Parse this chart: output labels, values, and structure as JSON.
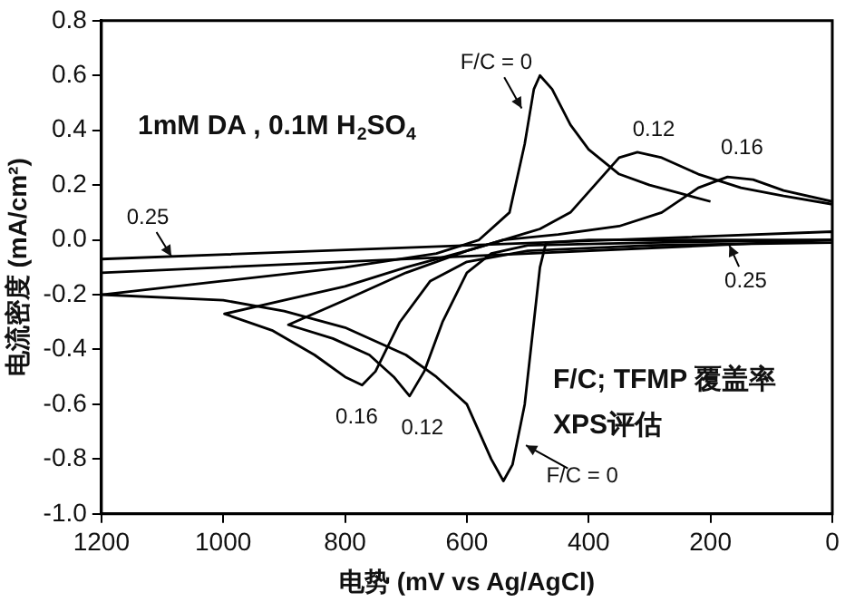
{
  "chart_data": {
    "type": "line",
    "xlabel": "电势 (mV vs Ag/AgCl)",
    "ylabel": "电流密度 (mA/cm²)",
    "xlim": [
      1200,
      0
    ],
    "xticks": [
      1200,
      1000,
      800,
      600,
      400,
      200,
      0
    ],
    "ylim": [
      -1,
      0.8
    ],
    "yticks": [
      {
        "value": -1,
        "label": "-1.0"
      },
      -0.8,
      -0.6,
      -0.4,
      -0.2,
      {
        "value": 0,
        "label": "0.0"
      },
      0.2,
      0.4,
      0.6,
      0.8
    ],
    "grid": false,
    "legend": false,
    "marker": "none",
    "line_style": "solid",
    "series": [
      {
        "color": "#000000",
        "x": [
          0,
          200,
          400,
          470,
          480,
          490,
          505,
          525,
          540,
          560,
          600,
          650,
          700,
          800,
          900,
          1000,
          1200,
          1000,
          800,
          650,
          580,
          530,
          505,
          490,
          480,
          460,
          430,
          400,
          350,
          300,
          250,
          200
        ],
        "values": [
          0.0,
          0.0,
          0.0,
          -0.01,
          -0.1,
          -0.3,
          -0.6,
          -0.82,
          -0.88,
          -0.8,
          -0.6,
          -0.5,
          -0.42,
          -0.32,
          -0.26,
          -0.22,
          -0.2,
          -0.15,
          -0.1,
          -0.05,
          0.0,
          0.1,
          0.35,
          0.55,
          0.6,
          0.55,
          0.42,
          0.33,
          0.24,
          0.2,
          0.17,
          0.14
        ]
      },
      {
        "color": "#000000",
        "x": [
          0,
          300,
          500,
          560,
          600,
          640,
          670,
          694,
          720,
          760,
          820,
          893,
          800,
          700,
          600,
          540,
          480,
          430,
          390,
          350,
          320,
          280,
          220,
          150,
          80,
          0
        ],
        "values": [
          0.0,
          -0.01,
          -0.02,
          -0.05,
          -0.12,
          -0.3,
          -0.48,
          -0.57,
          -0.5,
          -0.42,
          -0.36,
          -0.31,
          -0.22,
          -0.12,
          -0.04,
          0.0,
          0.04,
          0.1,
          0.2,
          0.3,
          0.32,
          0.3,
          0.24,
          0.19,
          0.16,
          0.13
        ]
      },
      {
        "color": "#000000",
        "x": [
          0,
          300,
          500,
          600,
          660,
          710,
          750,
          772,
          800,
          850,
          920,
          998,
          900,
          800,
          700,
          600,
          540,
          450,
          350,
          280,
          220,
          172,
          130,
          80,
          0
        ],
        "values": [
          -0.01,
          -0.02,
          -0.04,
          -0.08,
          -0.15,
          -0.3,
          -0.48,
          -0.53,
          -0.5,
          -0.42,
          -0.33,
          -0.27,
          -0.22,
          -0.17,
          -0.1,
          -0.04,
          0.0,
          0.02,
          0.05,
          0.1,
          0.19,
          0.23,
          0.22,
          0.18,
          0.14
        ]
      },
      {
        "color": "#000000",
        "x": [
          1200,
          600,
          0,
          0,
          600,
          1200
        ],
        "values": [
          -0.12,
          -0.06,
          0.0,
          0.03,
          -0.02,
          -0.07
        ]
      }
    ],
    "annotations": [
      {
        "text": "F/C = 0",
        "x": 510,
        "y": 0.48
      },
      {
        "text": "0.12",
        "x": 320,
        "y": 0.32
      },
      {
        "text": "0.16",
        "x": 172,
        "y": 0.23
      },
      {
        "text": "0.25",
        "x": 1085,
        "y": -0.06
      },
      {
        "text": "0.25",
        "x": 169,
        "y": -0.02
      },
      {
        "text": "0.16",
        "x": 772,
        "y": -0.53
      },
      {
        "text": "0.12",
        "x": 694,
        "y": -0.57
      },
      {
        "text": "F/C = 0",
        "x": 503,
        "y": -0.75
      },
      "1mM DA , 0.1M H$_{2}$SO$_{4}$",
      "F/C; TFMP 覆盖率",
      "XPS评估"
    ]
  }
}
